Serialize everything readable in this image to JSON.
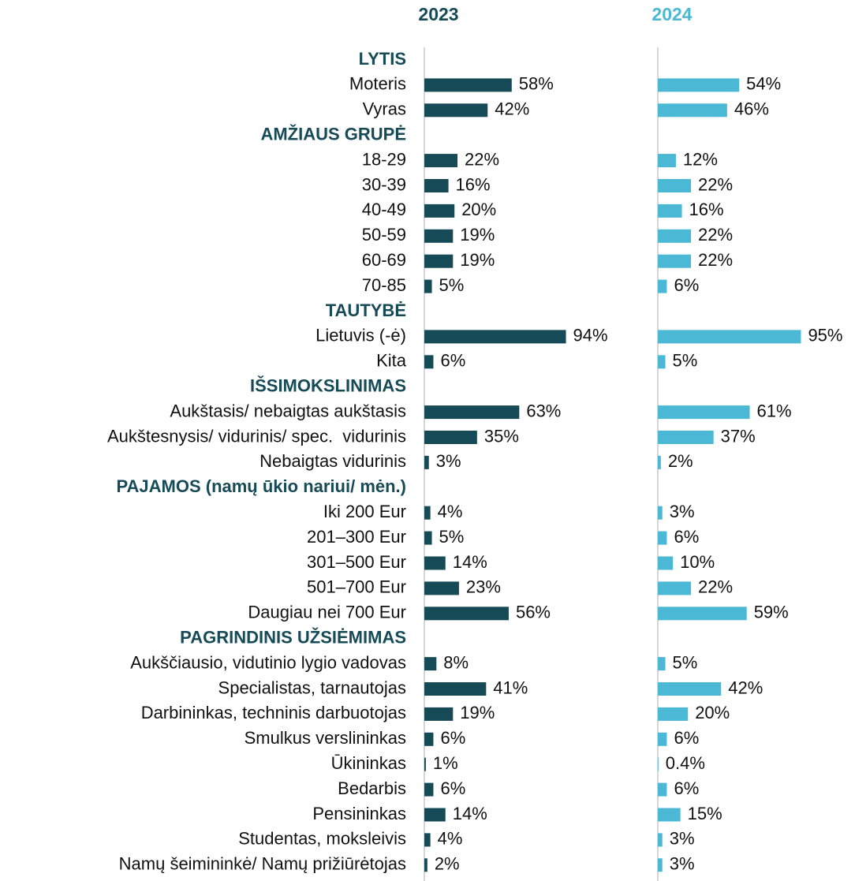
{
  "chart_data": {
    "type": "bar",
    "categories": [
      "LYTIS",
      "Moteris",
      "Vyras",
      "AMŽIAUS GRUPĖ",
      "18-29",
      "30-39",
      "40-49",
      "50-59",
      "60-69",
      "70-85",
      "TAUTYBĖ",
      "Lietuvis (-ė)",
      "Kita",
      "IŠSIMOKSLINIMAS",
      "Aukštasis/ nebaigtas aukštasis",
      "Aukštesnysis/ vidurinis/ spec.  vidurinis",
      "Nebaigtas vidurinis",
      "PAJAMOS (namų ūkio nariui/ mėn.)",
      "Iki 200 Eur",
      "201–300 Eur",
      "301–500 Eur",
      "501–700 Eur",
      "Daugiau nei 700 Eur",
      "PAGRINDINIS UŽSIĖMIMAS",
      "Aukščiausio, vidutinio lygio vadovas",
      "Specialistas, tarnautojas",
      "Darbininkas, techninis darbuotojas",
      "Smulkus verslininkas",
      "Ūkininkas",
      "Bedarbis",
      "Pensininkas",
      "Studentas, moksleivis",
      "Namų šeimininkė/ Namų prižiūrėtojas"
    ],
    "series": [
      {
        "name": "2023",
        "color": "#174a57",
        "values": [
          null,
          58,
          42,
          null,
          22,
          16,
          20,
          19,
          19,
          5,
          null,
          94,
          6,
          null,
          63,
          35,
          3,
          null,
          4,
          5,
          14,
          23,
          56,
          null,
          8,
          41,
          19,
          6,
          1,
          6,
          14,
          4,
          2
        ],
        "value_labels": [
          null,
          "58%",
          "42%",
          null,
          "22%",
          "16%",
          "20%",
          "19%",
          "19%",
          "5%",
          null,
          "94%",
          "6%",
          null,
          "63%",
          "35%",
          "3%",
          null,
          "4%",
          "5%",
          "14%",
          "23%",
          "56%",
          null,
          "8%",
          "41%",
          "19%",
          "6%",
          "1%",
          "6%",
          "14%",
          "4%",
          "2%"
        ]
      },
      {
        "name": "2024",
        "color": "#4bb8d6",
        "values": [
          null,
          54,
          46,
          null,
          12,
          22,
          16,
          22,
          22,
          6,
          null,
          95,
          5,
          null,
          61,
          37,
          2,
          null,
          3,
          6,
          10,
          22,
          59,
          null,
          5,
          42,
          20,
          6,
          0.4,
          6,
          15,
          3,
          3
        ],
        "value_labels": [
          null,
          "54%",
          "46%",
          null,
          "12%",
          "22%",
          "16%",
          "22%",
          "22%",
          "6%",
          null,
          "95%",
          "5%",
          null,
          "61%",
          "37%",
          "2%",
          null,
          "3%",
          "6%",
          "10%",
          "22%",
          "59%",
          null,
          "5%",
          "42%",
          "20%",
          "6%",
          "0.4%",
          "6%",
          "15%",
          "3%",
          "3%"
        ]
      }
    ],
    "xlim": [
      0,
      100
    ]
  }
}
